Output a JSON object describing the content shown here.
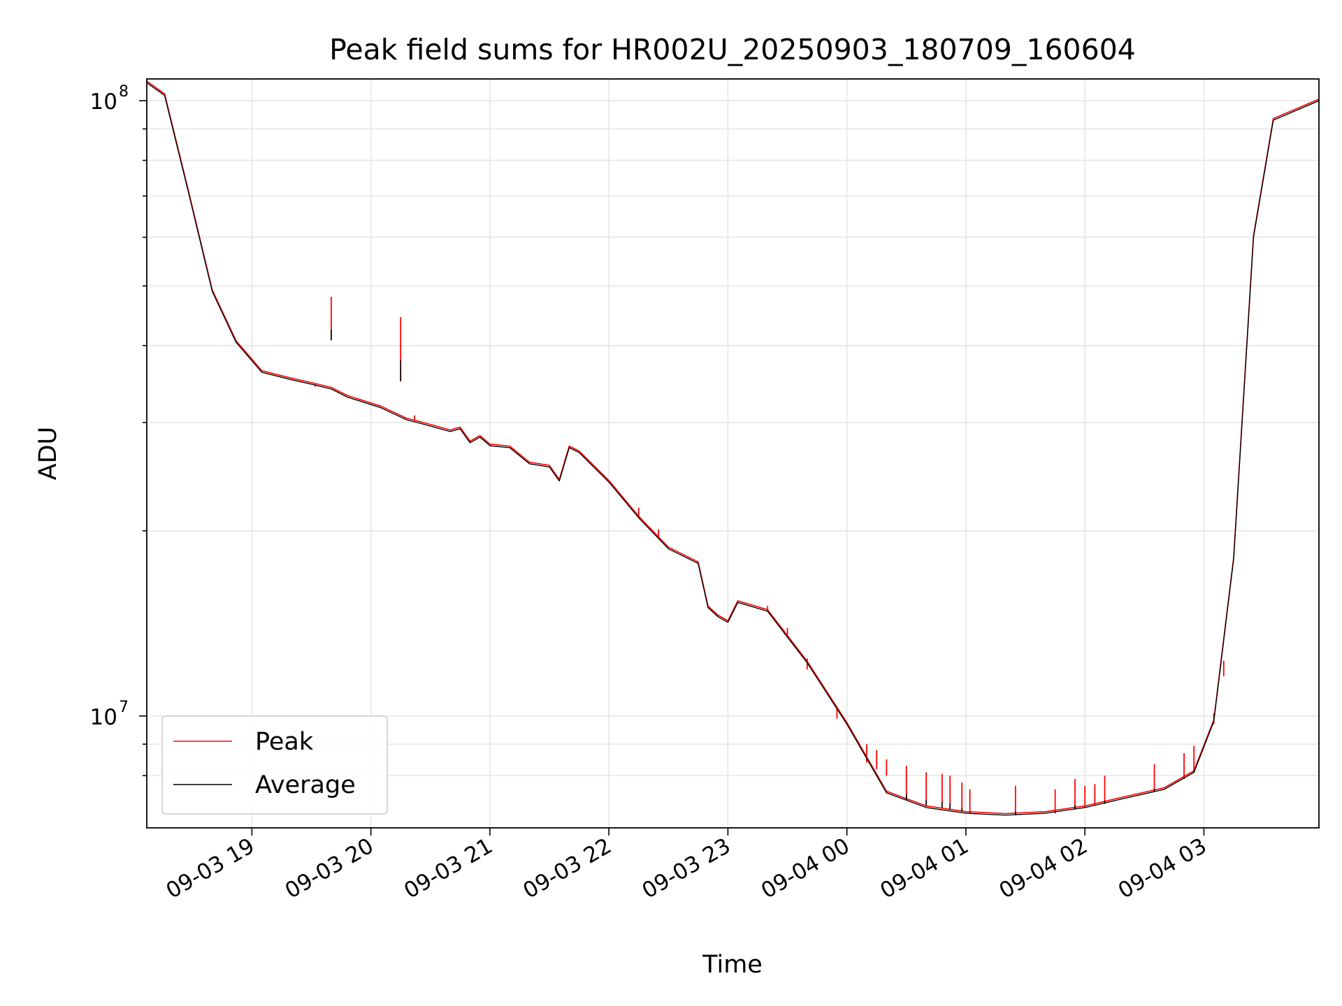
{
  "chart_data": {
    "type": "line",
    "title": "Peak field sums for HR002U_20250903_180709_160604",
    "xlabel": "Time",
    "ylabel": "ADU",
    "yscale": "log",
    "xlim": [
      "2025-09-03 18:07",
      "2025-09-04 03:58"
    ],
    "ylim": [
      6580000,
      108500000
    ],
    "x_ticks": [
      {
        "value": "2025-09-03 19:00",
        "label": "09-03 19"
      },
      {
        "value": "2025-09-03 20:00",
        "label": "09-03 20"
      },
      {
        "value": "2025-09-03 21:00",
        "label": "09-03 21"
      },
      {
        "value": "2025-09-03 22:00",
        "label": "09-03 22"
      },
      {
        "value": "2025-09-03 23:00",
        "label": "09-03 23"
      },
      {
        "value": "2025-09-04 00:00",
        "label": "09-04 00"
      },
      {
        "value": "2025-09-04 01:00",
        "label": "09-04 01"
      },
      {
        "value": "2025-09-04 02:00",
        "label": "09-04 02"
      },
      {
        "value": "2025-09-04 03:00",
        "label": "09-04 03"
      }
    ],
    "y_major_ticks": [
      {
        "value": 10000000,
        "base": "10",
        "exp": "7"
      },
      {
        "value": 100000000,
        "base": "10",
        "exp": "8"
      }
    ],
    "y_minor_ticks": [
      8000000,
      9000000,
      20000000,
      30000000,
      40000000,
      50000000,
      60000000,
      70000000,
      80000000,
      90000000
    ],
    "grid": true,
    "legend_position": "lower-left",
    "series": [
      {
        "name": "Peak",
        "color": "#ff0000"
      },
      {
        "name": "Average",
        "color": "#000000"
      }
    ],
    "x": [
      "2025-09-03 18:07",
      "2025-09-03 18:16",
      "2025-09-03 18:28",
      "2025-09-03 18:40",
      "2025-09-03 18:52",
      "2025-09-03 19:05",
      "2025-09-03 19:20",
      "2025-09-03 19:32",
      "2025-09-03 19:40",
      "2025-09-03 19:48",
      "2025-09-03 20:05",
      "2025-09-03 20:18",
      "2025-09-03 20:25",
      "2025-09-03 20:40",
      "2025-09-03 20:45",
      "2025-09-03 20:50",
      "2025-09-03 20:55",
      "2025-09-03 21:00",
      "2025-09-03 21:10",
      "2025-09-03 21:20",
      "2025-09-03 21:30",
      "2025-09-03 21:35",
      "2025-09-03 21:40",
      "2025-09-03 21:45",
      "2025-09-03 22:00",
      "2025-09-03 22:15",
      "2025-09-03 22:30",
      "2025-09-03 22:45",
      "2025-09-03 22:50",
      "2025-09-03 22:55",
      "2025-09-03 23:00",
      "2025-09-03 23:05",
      "2025-09-03 23:20",
      "2025-09-03 23:40",
      "2025-09-04 00:00",
      "2025-09-04 00:20",
      "2025-09-04 00:40",
      "2025-09-04 01:00",
      "2025-09-04 01:20",
      "2025-09-04 01:40",
      "2025-09-04 02:00",
      "2025-09-04 02:20",
      "2025-09-04 02:40",
      "2025-09-04 02:55",
      "2025-09-04 03:05",
      "2025-09-04 03:15",
      "2025-09-04 03:25",
      "2025-09-04 03:35",
      "2025-09-04 03:58"
    ],
    "average": [
      107000000,
      102000000,
      71000000,
      49000000,
      40500000,
      36200000,
      35200000,
      34500000,
      34000000,
      33000000,
      31700000,
      30300000,
      29900000,
      29000000,
      29300000,
      27800000,
      28400000,
      27500000,
      27300000,
      25700000,
      25400000,
      24100000,
      27300000,
      26800000,
      24000000,
      21000000,
      18700000,
      17700000,
      15000000,
      14500000,
      14200000,
      15300000,
      14800000,
      12200000,
      9700000,
      7500000,
      7100000,
      6950000,
      6900000,
      6950000,
      7100000,
      7350000,
      7600000,
      8100000,
      9800000,
      18000000,
      60000000,
      93000000,
      100000000
    ],
    "peak_spikes": [
      {
        "x": "2025-09-03 19:40",
        "peak": 48000000,
        "average": 40800000
      },
      {
        "x": "2025-09-03 20:15",
        "peak": 44500000,
        "average": 35000000
      },
      {
        "x": "2025-09-03 19:32",
        "peak": 34600000,
        "average": 34300000
      },
      {
        "x": "2025-09-03 20:22",
        "peak": 30800000,
        "average": 30200000
      },
      {
        "x": "2025-09-03 22:15",
        "peak": 21800000,
        "average": 21000000
      },
      {
        "x": "2025-09-03 22:25",
        "peak": 20100000,
        "average": 19500000
      },
      {
        "x": "2025-09-03 23:20",
        "peak": 15100000,
        "average": 14800000
      },
      {
        "x": "2025-09-03 23:30",
        "peak": 13900000,
        "average": 13400000
      },
      {
        "x": "2025-09-03 23:40",
        "peak": 12400000,
        "average": 11900000
      },
      {
        "x": "2025-09-03 23:55",
        "peak": 10300000,
        "average": 9900000
      },
      {
        "x": "2025-09-04 00:10",
        "peak": 9000000,
        "average": 8400000
      },
      {
        "x": "2025-09-04 00:15",
        "peak": 8800000,
        "average": 8200000
      },
      {
        "x": "2025-09-04 00:20",
        "peak": 8500000,
        "average": 8000000
      },
      {
        "x": "2025-09-04 00:30",
        "peak": 8300000,
        "average": 7300000
      },
      {
        "x": "2025-09-04 00:40",
        "peak": 8100000,
        "average": 7150000
      },
      {
        "x": "2025-09-04 00:48",
        "peak": 8050000,
        "average": 7100000
      },
      {
        "x": "2025-09-04 00:52",
        "peak": 8000000,
        "average": 7050000
      },
      {
        "x": "2025-09-04 00:58",
        "peak": 7800000,
        "average": 7000000
      },
      {
        "x": "2025-09-04 01:02",
        "peak": 7600000,
        "average": 6950000
      },
      {
        "x": "2025-09-04 01:25",
        "peak": 7700000,
        "average": 6900000
      },
      {
        "x": "2025-09-04 01:45",
        "peak": 7600000,
        "average": 6950000
      },
      {
        "x": "2025-09-04 01:55",
        "peak": 7900000,
        "average": 7050000
      },
      {
        "x": "2025-09-04 02:00",
        "peak": 7700000,
        "average": 7100000
      },
      {
        "x": "2025-09-04 02:05",
        "peak": 7750000,
        "average": 7150000
      },
      {
        "x": "2025-09-04 02:10",
        "peak": 8000000,
        "average": 7200000
      },
      {
        "x": "2025-09-04 02:35",
        "peak": 8350000,
        "average": 7550000
      },
      {
        "x": "2025-09-04 02:50",
        "peak": 8700000,
        "average": 7900000
      },
      {
        "x": "2025-09-04 02:55",
        "peak": 8950000,
        "average": 8100000
      },
      {
        "x": "2025-09-04 03:05",
        "peak": 10100000,
        "average": 9700000
      },
      {
        "x": "2025-09-04 03:10",
        "peak": 12300000,
        "average": 11600000
      }
    ]
  }
}
